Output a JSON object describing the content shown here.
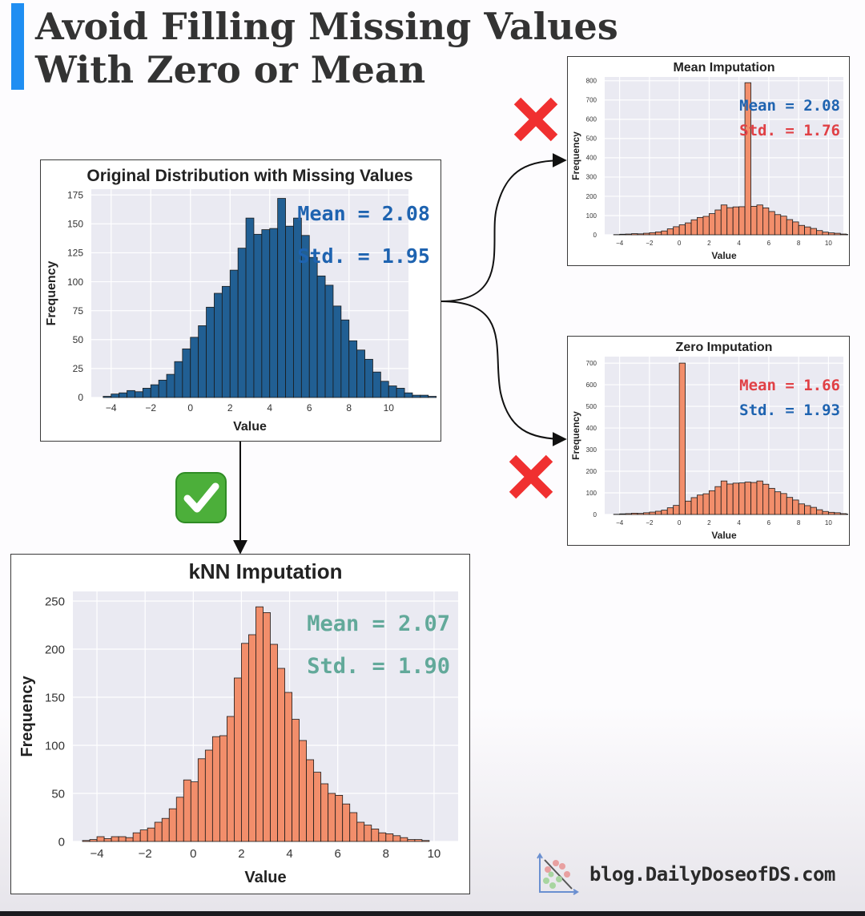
{
  "headline": {
    "line1": "Avoid Filling Missing Values",
    "line2": "With Zero or Mean"
  },
  "colors": {
    "blue_bar": "#215f93",
    "orange_bar": "#f28e6b",
    "plot_bg": "#eaeaf2",
    "accent": "#1f8ef2",
    "stat_blue": "#1e63b0",
    "stat_red": "#e04045",
    "stat_teal": "#62a99a"
  },
  "markers": {
    "mean_imputation": "cross-icon",
    "zero_imputation": "cross-icon",
    "knn_imputation": "checkmark-icon"
  },
  "footer": {
    "url": "blog.DailyDoseofDS.com"
  },
  "chart_data": [
    {
      "id": "original",
      "type": "bar",
      "title": "Original Distribution with Missing Values",
      "xlabel": "Value",
      "ylabel": "Frequency",
      "xlim": [
        -5,
        11
      ],
      "ylim": [
        0,
        180
      ],
      "xticks": [
        -4,
        -2,
        0,
        2,
        4,
        6,
        8,
        10
      ],
      "yticks": [
        0,
        25,
        50,
        75,
        100,
        125,
        150,
        175
      ],
      "bin_start": -4.4,
      "bin_width": 0.4,
      "values": [
        1,
        3,
        4,
        6,
        5,
        8,
        11,
        15,
        20,
        31,
        42,
        52,
        62,
        78,
        90,
        96,
        110,
        129,
        155,
        141,
        145,
        146,
        172,
        148,
        155,
        140,
        121,
        105,
        97,
        79,
        67,
        49,
        41,
        33,
        22,
        14,
        10,
        8,
        4,
        2,
        2,
        1,
        0,
        1,
        0,
        0,
        0,
        1
      ],
      "color": "#215f93",
      "annotations": [
        {
          "text": "Mean = 2.08",
          "color": "#1e63b0"
        },
        {
          "text": "Std. = 1.95",
          "color": "#1e63b0"
        }
      ]
    },
    {
      "id": "mean_imputation",
      "type": "bar",
      "title": "Mean Imputation",
      "xlabel": "Value",
      "ylabel": "Frequency",
      "xlim": [
        -5,
        11
      ],
      "ylim": [
        0,
        820
      ],
      "xticks": [
        -4,
        -2,
        0,
        2,
        4,
        6,
        8,
        10
      ],
      "yticks": [
        0,
        100,
        200,
        300,
        400,
        500,
        600,
        700,
        800
      ],
      "bin_start": -4.4,
      "bin_width": 0.4,
      "values": [
        1,
        3,
        4,
        6,
        5,
        8,
        11,
        15,
        20,
        31,
        42,
        52,
        62,
        78,
        90,
        96,
        110,
        129,
        155,
        141,
        145,
        146,
        790,
        148,
        155,
        140,
        121,
        105,
        97,
        79,
        67,
        49,
        41,
        33,
        22,
        14,
        10,
        8,
        4,
        2,
        2,
        1,
        0,
        1,
        0,
        0,
        0,
        1
      ],
      "color": "#f28e6b",
      "annotations": [
        {
          "text": "Mean = 2.08",
          "color": "#1e63b0"
        },
        {
          "text": "Std. = 1.76",
          "color": "#e04045"
        }
      ]
    },
    {
      "id": "zero_imputation",
      "type": "bar",
      "title": "Zero Imputation",
      "xlabel": "Value",
      "ylabel": "Frequency",
      "xlim": [
        -5,
        11
      ],
      "ylim": [
        0,
        730
      ],
      "xticks": [
        -4,
        -2,
        0,
        2,
        4,
        6,
        8,
        10
      ],
      "yticks": [
        0,
        100,
        200,
        300,
        400,
        500,
        600,
        700
      ],
      "bin_start": -4.4,
      "bin_width": 0.4,
      "values": [
        1,
        3,
        4,
        6,
        5,
        8,
        11,
        15,
        20,
        31,
        42,
        700,
        62,
        78,
        90,
        96,
        110,
        129,
        155,
        141,
        145,
        146,
        150,
        148,
        155,
        140,
        121,
        105,
        97,
        79,
        67,
        49,
        41,
        33,
        22,
        14,
        10,
        8,
        4,
        2,
        2,
        1,
        0,
        1,
        0,
        0,
        0,
        1
      ],
      "color": "#f28e6b",
      "annotations": [
        {
          "text": "Mean = 1.66",
          "color": "#e04045"
        },
        {
          "text": "Std. = 1.93",
          "color": "#1e63b0"
        }
      ]
    },
    {
      "id": "knn_imputation",
      "type": "bar",
      "title": "kNN Imputation",
      "xlabel": "Value",
      "ylabel": "Frequency",
      "xlim": [
        -5,
        11
      ],
      "ylim": [
        0,
        260
      ],
      "xticks": [
        -4,
        -2,
        0,
        2,
        4,
        6,
        8,
        10
      ],
      "yticks": [
        0,
        50,
        100,
        150,
        200,
        250
      ],
      "bin_start": -4.6,
      "bin_width": 0.3,
      "values": [
        1,
        2,
        5,
        3,
        5,
        5,
        4,
        9,
        12,
        14,
        20,
        24,
        34,
        46,
        64,
        62,
        86,
        95,
        109,
        110,
        130,
        170,
        206,
        215,
        244,
        238,
        205,
        180,
        155,
        127,
        105,
        85,
        72,
        60,
        50,
        48,
        39,
        30,
        20,
        17,
        13,
        9,
        8,
        6,
        4,
        2,
        2,
        1,
        0,
        0,
        0,
        0,
        0,
        0,
        0,
        2,
        0,
        0
      ],
      "color": "#f28e6b",
      "annotations": [
        {
          "text": "Mean = 2.07",
          "color": "#62a99a"
        },
        {
          "text": "Std. = 1.90",
          "color": "#62a99a"
        }
      ]
    }
  ]
}
